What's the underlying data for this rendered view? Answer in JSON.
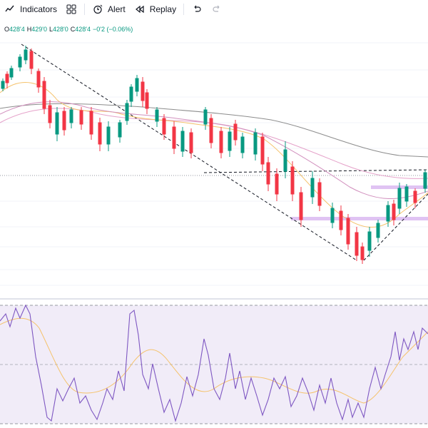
{
  "toolbar": {
    "indicators_label": "Indicators",
    "alert_label": "Alert",
    "replay_label": "Replay"
  },
  "legend": {
    "open_key": "O",
    "open": "428'4",
    "high_key": "H",
    "high": "429'0",
    "low_key": "L",
    "low": "428'0",
    "close_key": "C",
    "close": "428'4",
    "change": "−0'2 (−0.06%)"
  },
  "colors": {
    "up": "#089981",
    "down": "#f23645",
    "ma_fast": "#f5c26b",
    "ma_mid": "#e5a1c9",
    "ma_slow": "#8c8c8c",
    "rsi": "#7e57c2",
    "rsi_band": "#ede7f6",
    "zone": "#d8b4f0"
  }
}
